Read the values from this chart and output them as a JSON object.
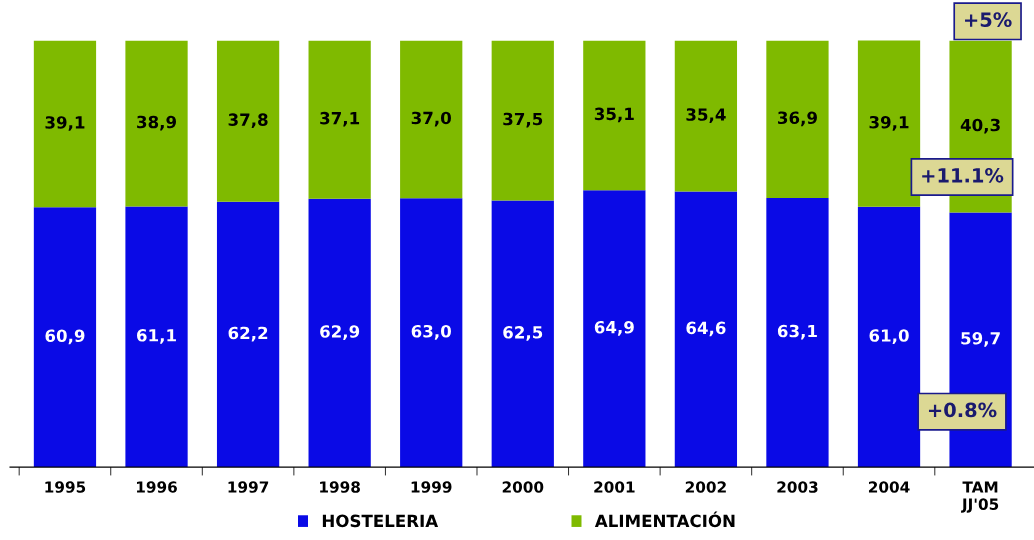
{
  "chart_data": {
    "type": "bar",
    "stacked": true,
    "categories": [
      "1995",
      "1996",
      "1997",
      "1998",
      "1999",
      "2000",
      "2001",
      "2002",
      "2003",
      "2004",
      "TAM\nJJ'05"
    ],
    "series": [
      {
        "name": "HOSTELERIA",
        "color": "#0a0ae6",
        "values": [
          60.9,
          61.1,
          62.2,
          62.9,
          63.0,
          62.5,
          64.9,
          64.6,
          63.1,
          61.0,
          59.7
        ],
        "value_labels": [
          "60,9",
          "61,1",
          "62,2",
          "62,9",
          "63,0",
          "62,5",
          "64,9",
          "64,6",
          "63,1",
          "61,0",
          "59,7"
        ]
      },
      {
        "name": "ALIMENTACIÓN",
        "color": "#7fba00",
        "values": [
          39.1,
          38.9,
          37.8,
          37.1,
          37.0,
          37.5,
          35.1,
          35.4,
          36.9,
          39.1,
          40.3
        ],
        "value_labels": [
          "39,1",
          "38,9",
          "37,8",
          "37,1",
          "37,0",
          "37,5",
          "35,1",
          "35,4",
          "36,9",
          "39,1",
          "40,3"
        ]
      }
    ],
    "ylim": [
      0,
      100
    ],
    "tick_labels": "x",
    "legend": "bottom",
    "grid": false,
    "annotations": [
      "+5%",
      "+11.1%",
      "+0.8%"
    ]
  }
}
